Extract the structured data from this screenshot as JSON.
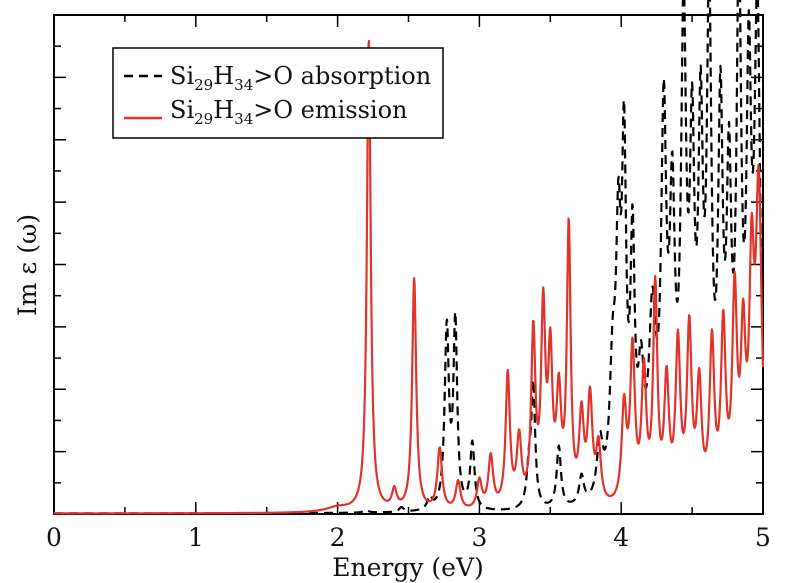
{
  "chart_data": {
    "type": "line",
    "xlabel": "Energy (eV)",
    "ylabel": "Im ε  (ω)",
    "xlim": [
      0,
      5
    ],
    "ylim": [
      0,
      1.0
    ],
    "x_ticks": [
      0,
      1,
      2,
      3,
      4,
      5
    ],
    "x_tick_labels": [
      "0",
      "1",
      "2",
      "3",
      "4",
      "5"
    ],
    "y_tick_labels_shown": false,
    "legend_position": "top-left",
    "series": [
      {
        "name": "absorption",
        "legend": {
          "prefix": "Si",
          "sub1": "29",
          "mid": "H",
          "sub2": "34",
          "suffix": ">O absorption"
        },
        "style": "dashed",
        "color": "#000000",
        "baseline": 0.001,
        "peaks": [
          [
            2.2,
            0.006,
            0.02
          ],
          [
            2.45,
            0.01,
            0.02
          ],
          [
            2.65,
            0.025,
            0.02
          ],
          [
            2.77,
            0.38,
            0.018
          ],
          [
            2.83,
            0.39,
            0.016
          ],
          [
            2.95,
            0.14,
            0.018
          ],
          [
            3.35,
            0.08,
            0.02
          ],
          [
            3.38,
            0.25,
            0.016
          ],
          [
            3.56,
            0.13,
            0.018
          ],
          [
            3.72,
            0.06,
            0.02
          ],
          [
            3.85,
            0.12,
            0.025
          ],
          [
            3.94,
            0.25,
            0.025
          ],
          [
            3.98,
            0.48,
            0.02
          ],
          [
            4.02,
            0.68,
            0.018
          ],
          [
            4.08,
            0.5,
            0.018
          ],
          [
            4.14,
            0.22,
            0.025
          ],
          [
            4.22,
            0.35,
            0.03
          ],
          [
            4.3,
            0.75,
            0.022
          ],
          [
            4.36,
            0.55,
            0.022
          ],
          [
            4.44,
            0.95,
            0.022
          ],
          [
            4.5,
            0.65,
            0.02
          ],
          [
            4.56,
            0.7,
            0.02
          ],
          [
            4.62,
            0.98,
            0.02
          ],
          [
            4.7,
            0.75,
            0.02
          ],
          [
            4.76,
            0.6,
            0.02
          ],
          [
            4.83,
            1.05,
            0.02
          ],
          [
            4.9,
            0.8,
            0.02
          ],
          [
            4.96,
            1.0,
            0.025
          ]
        ]
      },
      {
        "name": "emission",
        "legend": {
          "prefix": "Si",
          "sub1": "29",
          "mid": "H",
          "sub2": "34",
          "suffix": ">O emission"
        },
        "style": "solid",
        "color": "#e0332a",
        "baseline": 0.001,
        "peaks": [
          [
            2.0,
            0.01,
            0.1
          ],
          [
            2.22,
            1.0,
            0.016
          ],
          [
            2.4,
            0.04,
            0.02
          ],
          [
            2.54,
            0.49,
            0.017
          ],
          [
            2.72,
            0.13,
            0.02
          ],
          [
            2.85,
            0.06,
            0.02
          ],
          [
            3.0,
            0.06,
            0.02
          ],
          [
            3.08,
            0.11,
            0.02
          ],
          [
            3.2,
            0.28,
            0.018
          ],
          [
            3.28,
            0.14,
            0.02
          ],
          [
            3.38,
            0.36,
            0.018
          ],
          [
            3.45,
            0.4,
            0.018
          ],
          [
            3.5,
            0.3,
            0.018
          ],
          [
            3.56,
            0.22,
            0.02
          ],
          [
            3.63,
            0.58,
            0.016
          ],
          [
            3.72,
            0.18,
            0.02
          ],
          [
            3.78,
            0.22,
            0.02
          ],
          [
            3.84,
            0.12,
            0.02
          ],
          [
            4.02,
            0.2,
            0.02
          ],
          [
            4.08,
            0.32,
            0.02
          ],
          [
            4.16,
            0.27,
            0.02
          ],
          [
            4.24,
            0.45,
            0.018
          ],
          [
            4.32,
            0.25,
            0.02
          ],
          [
            4.4,
            0.33,
            0.02
          ],
          [
            4.48,
            0.36,
            0.02
          ],
          [
            4.55,
            0.24,
            0.02
          ],
          [
            4.64,
            0.33,
            0.02
          ],
          [
            4.72,
            0.36,
            0.02
          ],
          [
            4.8,
            0.42,
            0.02
          ],
          [
            4.86,
            0.32,
            0.02
          ],
          [
            4.92,
            0.45,
            0.02
          ],
          [
            4.97,
            0.65,
            0.025
          ]
        ]
      }
    ]
  }
}
